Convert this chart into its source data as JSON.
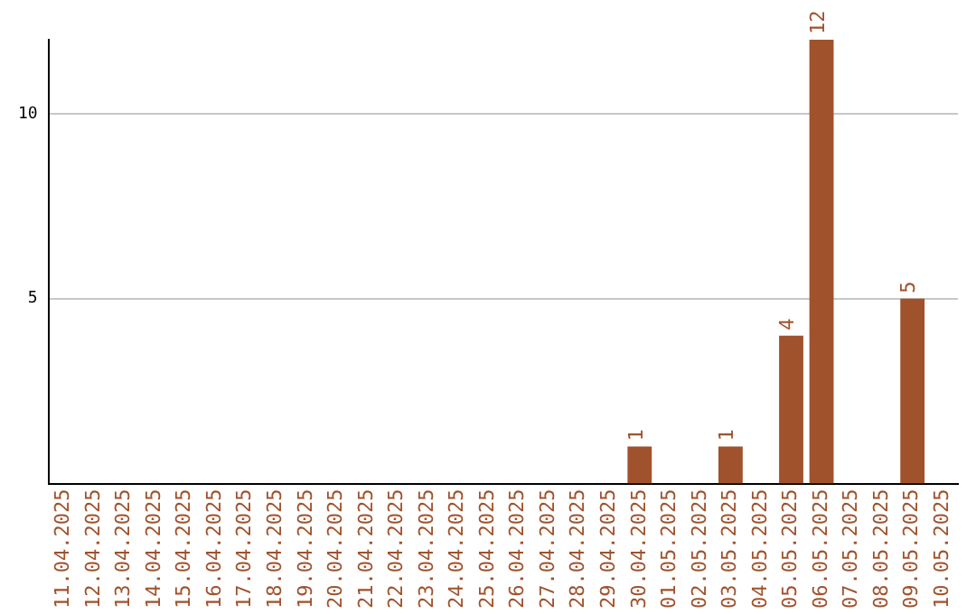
{
  "chart_data": {
    "type": "bar",
    "categories": [
      "11.04.2025",
      "12.04.2025",
      "13.04.2025",
      "14.04.2025",
      "15.04.2025",
      "16.04.2025",
      "17.04.2025",
      "18.04.2025",
      "19.04.2025",
      "20.04.2025",
      "21.04.2025",
      "22.04.2025",
      "23.04.2025",
      "24.04.2025",
      "25.04.2025",
      "26.04.2025",
      "27.04.2025",
      "28.04.2025",
      "29.04.2025",
      "30.04.2025",
      "01.05.2025",
      "02.05.2025",
      "03.05.2025",
      "04.05.2025",
      "05.05.2025",
      "06.05.2025",
      "07.05.2025",
      "08.05.2025",
      "09.05.2025",
      "10.05.2025"
    ],
    "values": [
      0,
      0,
      0,
      0,
      0,
      0,
      0,
      0,
      0,
      0,
      0,
      0,
      0,
      0,
      0,
      0,
      0,
      0,
      0,
      1,
      0,
      0,
      1,
      0,
      4,
      12,
      0,
      0,
      5,
      0
    ],
    "value_labels": [
      null,
      null,
      null,
      null,
      null,
      null,
      null,
      null,
      null,
      null,
      null,
      null,
      null,
      null,
      null,
      null,
      null,
      null,
      null,
      "1",
      null,
      null,
      "1",
      null,
      "4",
      "12",
      null,
      null,
      "5",
      null
    ],
    "color": "#a0522d",
    "ylim": [
      0,
      12
    ],
    "yticks": [
      5,
      10
    ],
    "grid": "y",
    "legend": false
  }
}
